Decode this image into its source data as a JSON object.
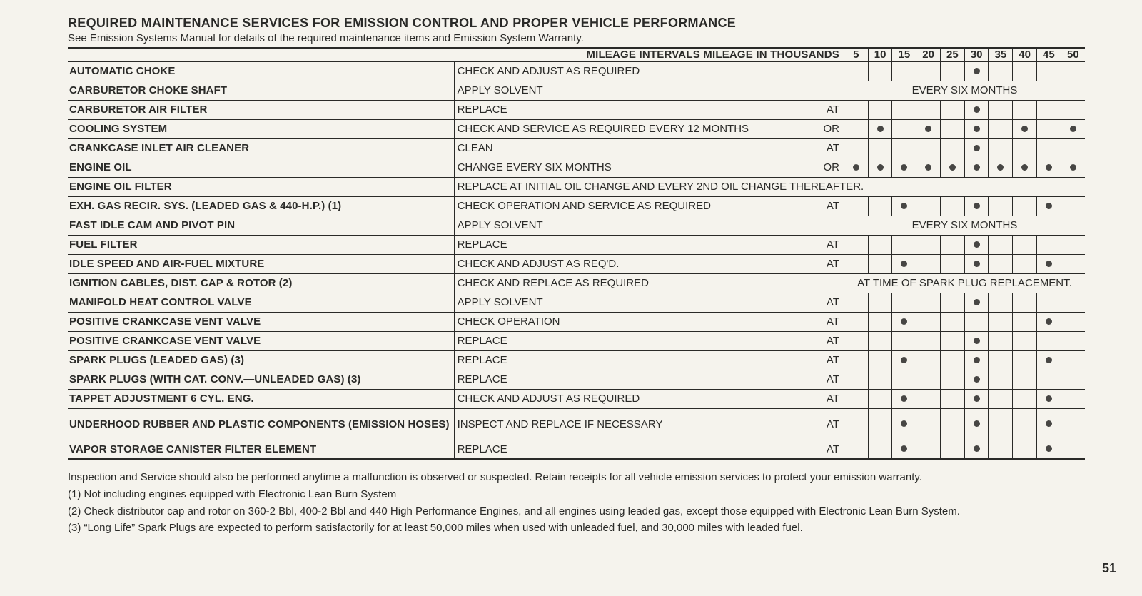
{
  "title": "REQUIRED MAINTENANCE SERVICES FOR EMISSION CONTROL AND PROPER VEHICLE PERFORMANCE",
  "subtitle": "See Emission Systems Manual for details of the required maintenance items and Emission System Warranty.",
  "header_label": "MILEAGE INTERVALS MILEAGE IN THOUSANDS",
  "mileage_cols": [
    "5",
    "10",
    "15",
    "20",
    "25",
    "30",
    "35",
    "40",
    "45",
    "50"
  ],
  "rows": [
    {
      "item": "AUTOMATIC CHOKE",
      "action": "CHECK AND ADJUST AS REQUIRED",
      "suffix": "",
      "dots": [
        0,
        0,
        0,
        0,
        0,
        1,
        0,
        0,
        0,
        0
      ]
    },
    {
      "item": "CARBURETOR CHOKE SHAFT",
      "action": "APPLY SOLVENT",
      "suffix": "",
      "overlay": "EVERY SIX MONTHS"
    },
    {
      "item": "CARBURETOR AIR FILTER",
      "action": "REPLACE",
      "suffix": "AT",
      "dots": [
        0,
        0,
        0,
        0,
        0,
        1,
        0,
        0,
        0,
        0
      ]
    },
    {
      "item": "COOLING SYSTEM",
      "action": "CHECK AND SERVICE AS REQUIRED EVERY 12 MONTHS",
      "suffix": "OR",
      "dots": [
        0,
        1,
        0,
        1,
        0,
        1,
        0,
        1,
        0,
        1
      ]
    },
    {
      "item": "CRANKCASE INLET AIR CLEANER",
      "action": "CLEAN",
      "suffix": "AT",
      "dots": [
        0,
        0,
        0,
        0,
        0,
        1,
        0,
        0,
        0,
        0
      ]
    },
    {
      "item": "ENGINE OIL",
      "action": "CHANGE EVERY SIX MONTHS",
      "suffix": "OR",
      "dots": [
        1,
        1,
        1,
        1,
        1,
        1,
        1,
        1,
        1,
        1
      ]
    },
    {
      "item": "ENGINE OIL FILTER",
      "action": "REPLACE AT INITIAL OIL CHANGE AND EVERY 2ND OIL CHANGE THEREAFTER.",
      "suffix": "",
      "full": true
    },
    {
      "item": "EXH. GAS RECIR. SYS. (LEADED GAS & 440-H.P.) (1)",
      "action": "CHECK OPERATION AND SERVICE AS REQUIRED",
      "suffix": "AT",
      "dots": [
        0,
        0,
        1,
        0,
        0,
        1,
        0,
        0,
        1,
        0
      ]
    },
    {
      "item": "FAST IDLE CAM AND PIVOT PIN",
      "action": "APPLY SOLVENT",
      "suffix": "",
      "overlay": "EVERY SIX MONTHS"
    },
    {
      "item": "FUEL FILTER",
      "action": "REPLACE",
      "suffix": "AT",
      "dots": [
        0,
        0,
        0,
        0,
        0,
        1,
        0,
        0,
        0,
        0
      ]
    },
    {
      "item": "IDLE SPEED AND AIR-FUEL MIXTURE",
      "action": "CHECK AND ADJUST AS REQ'D.",
      "suffix": "AT",
      "dots": [
        0,
        0,
        1,
        0,
        0,
        1,
        0,
        0,
        1,
        0
      ]
    },
    {
      "item": "IGNITION CABLES, DIST. CAP & ROTOR (2)",
      "action": "CHECK AND REPLACE AS REQUIRED",
      "suffix": "",
      "overlay": "AT TIME OF SPARK PLUG REPLACEMENT."
    },
    {
      "item": "MANIFOLD HEAT CONTROL VALVE",
      "action": "APPLY SOLVENT",
      "suffix": "AT",
      "dots": [
        0,
        0,
        0,
        0,
        0,
        1,
        0,
        0,
        0,
        0
      ]
    },
    {
      "item": "POSITIVE CRANKCASE VENT VALVE",
      "action": "CHECK OPERATION",
      "suffix": "AT",
      "dots": [
        0,
        0,
        1,
        0,
        0,
        0,
        0,
        0,
        1,
        0
      ]
    },
    {
      "item": "POSITIVE CRANKCASE VENT VALVE",
      "action": "REPLACE",
      "suffix": "AT",
      "dots": [
        0,
        0,
        0,
        0,
        0,
        1,
        0,
        0,
        0,
        0
      ]
    },
    {
      "item": "SPARK PLUGS (LEADED GAS) (3)",
      "action": "REPLACE",
      "suffix": "AT",
      "dots": [
        0,
        0,
        1,
        0,
        0,
        1,
        0,
        0,
        1,
        0
      ]
    },
    {
      "item": "SPARK PLUGS (WITH CAT. CONV.—UNLEADED GAS) (3)",
      "action": "REPLACE",
      "suffix": "AT",
      "dots": [
        0,
        0,
        0,
        0,
        0,
        1,
        0,
        0,
        0,
        0
      ]
    },
    {
      "item": "TAPPET ADJUSTMENT 6 CYL. ENG.",
      "action": "CHECK AND ADJUST AS REQUIRED",
      "suffix": "AT",
      "dots": [
        0,
        0,
        1,
        0,
        0,
        1,
        0,
        0,
        1,
        0
      ]
    },
    {
      "item": "UNDERHOOD RUBBER AND PLASTIC COMPONENTS (EMISSION HOSES)",
      "action": "INSPECT AND REPLACE IF NECESSARY",
      "suffix": "AT",
      "dots": [
        0,
        0,
        1,
        0,
        0,
        1,
        0,
        0,
        1,
        0
      ],
      "tall": true
    },
    {
      "item": "VAPOR STORAGE CANISTER FILTER ELEMENT",
      "action": "REPLACE",
      "suffix": "AT",
      "dots": [
        0,
        0,
        1,
        0,
        0,
        1,
        0,
        0,
        1,
        0
      ]
    }
  ],
  "notes": [
    "Inspection and Service should also be performed anytime a malfunction is observed or suspected. Retain receipts for all vehicle emission services to protect your emission warranty.",
    "(1) Not including engines equipped with Electronic Lean Burn System",
    "(2) Check distributor cap and rotor on 360-2 Bbl, 400-2 Bbl and 440 High Performance Engines, and all engines using leaded gas, except those equipped with Electronic Lean Burn System.",
    "(3) “Long Life” Spark Plugs are expected to perform satisfactorily for at least 50,000 miles when used with unleaded fuel, and 30,000 miles with leaded fuel."
  ],
  "page_number": "51",
  "layout": {
    "col_item_w": 513,
    "col_action_w": 478,
    "col_suffix_w": 40,
    "col_mile_w": 32,
    "dot_color": "#474644",
    "rule_color": "#2a2a28",
    "bg_color": "#f5f3ed"
  }
}
